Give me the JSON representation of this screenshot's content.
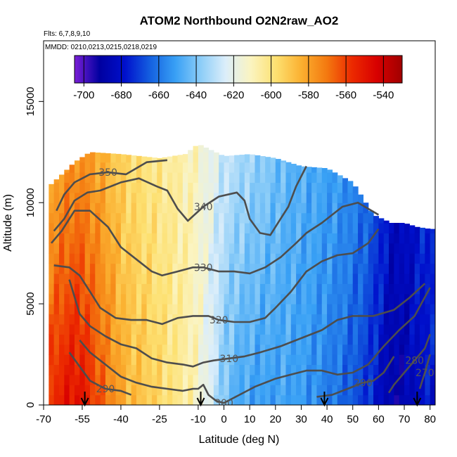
{
  "chart_data": {
    "type": "heatmap",
    "title": "ATOM2 Northbound O2N2raw_AO2",
    "flights_note": "Flts: 6,7,8,9,10",
    "dates_note": "MMDD: 0210,0213,0215,0218,0219",
    "xlabel": "Latitude (deg N)",
    "ylabel": "Altitude (m)",
    "xlim": [
      -70,
      82
    ],
    "ylim": [
      0,
      18000
    ],
    "x_ticks": [
      -70,
      -55,
      -40,
      -25,
      -10,
      0,
      10,
      20,
      30,
      40,
      50,
      60,
      70,
      80
    ],
    "y_ticks": [
      0,
      5000,
      10000,
      15000
    ],
    "colorbar": {
      "ticks": [
        -700,
        -680,
        -660,
        -640,
        -620,
        -600,
        -580,
        -560,
        -540
      ],
      "range": [
        -705,
        -530
      ],
      "colors": [
        "#7a1fd6",
        "#0000a0",
        "#0010cc",
        "#1460e0",
        "#38a0f5",
        "#8ccdf8",
        "#dceefa",
        "#fbf4c0",
        "#fde070",
        "#fbb030",
        "#f47a10",
        "#ec2a00",
        "#d80000",
        "#a00000"
      ]
    },
    "arrows_at_latitude": [
      -54,
      -9,
      39,
      75
    ],
    "heat_profile": {
      "lat": [
        -68,
        -62,
        -56,
        -50,
        -44,
        -38,
        -30,
        -20,
        -12,
        -5,
        0,
        5,
        15,
        25,
        35,
        45,
        55,
        60,
        65,
        70,
        75,
        80
      ],
      "value_low": [
        -558,
        -550,
        -548,
        -560,
        -572,
        -585,
        -590,
        -600,
        -608,
        -625,
        -640,
        -648,
        -652,
        -650,
        -655,
        -662,
        -672,
        -680,
        -690,
        -688,
        -682,
        -678
      ],
      "value_high": [
        -585,
        -578,
        -575,
        -580,
        -588,
        -595,
        -600,
        -605,
        -610,
        -620,
        -628,
        -632,
        -638,
        -645,
        -648,
        -652,
        -660,
        -668,
        -680,
        -682,
        -676,
        -672
      ]
    },
    "top_altitude": [
      [
        -68,
        10800
      ],
      [
        -62,
        11500
      ],
      [
        -58,
        12000
      ],
      [
        -52,
        12500
      ],
      [
        -40,
        12400
      ],
      [
        -25,
        12200
      ],
      [
        -15,
        12400
      ],
      [
        -10,
        12900
      ],
      [
        0,
        12300
      ],
      [
        10,
        12400
      ],
      [
        20,
        12200
      ],
      [
        30,
        11800
      ],
      [
        40,
        11700
      ],
      [
        50,
        11000
      ],
      [
        58,
        9400
      ],
      [
        65,
        9000
      ],
      [
        70,
        9000
      ],
      [
        75,
        8800
      ],
      [
        80,
        8700
      ]
    ],
    "contours": [
      {
        "label": "350",
        "points": [
          [
            -65,
            9600
          ],
          [
            -62,
            10400
          ],
          [
            -58,
            11000
          ],
          [
            -52,
            11400
          ],
          [
            -45,
            11500
          ],
          [
            -38,
            11400
          ],
          [
            -30,
            12000
          ],
          [
            -22,
            12100
          ]
        ]
      },
      {
        "label": "340",
        "points": [
          [
            -66,
            8600
          ],
          [
            -62,
            9200
          ],
          [
            -58,
            10100
          ],
          [
            -53,
            10500
          ],
          [
            -48,
            10600
          ],
          [
            -40,
            11000
          ],
          [
            -33,
            11200
          ],
          [
            -26,
            10800
          ],
          [
            -22,
            10600
          ],
          [
            -18,
            9700
          ],
          [
            -14,
            9100
          ],
          [
            -8,
            9800
          ],
          [
            -2,
            10300
          ],
          [
            5,
            10500
          ],
          [
            8,
            10100
          ],
          [
            10,
            9200
          ],
          [
            14,
            8500
          ],
          [
            18,
            8400
          ],
          [
            22,
            9200
          ],
          [
            25,
            9800
          ],
          [
            28,
            10800
          ],
          [
            32,
            11800
          ]
        ]
      },
      {
        "label": "330",
        "points": [
          [
            -67,
            8000
          ],
          [
            -63,
            8600
          ],
          [
            -58,
            9600
          ],
          [
            -52,
            9600
          ],
          [
            -45,
            8800
          ],
          [
            -40,
            7800
          ],
          [
            -34,
            7200
          ],
          [
            -28,
            6600
          ],
          [
            -24,
            6400
          ],
          [
            -18,
            6600
          ],
          [
            -12,
            6800
          ],
          [
            -8,
            6800
          ],
          [
            -2,
            6600
          ],
          [
            4,
            6600
          ],
          [
            10,
            6500
          ],
          [
            16,
            6800
          ],
          [
            22,
            7300
          ],
          [
            28,
            8000
          ],
          [
            32,
            8500
          ],
          [
            38,
            9000
          ],
          [
            46,
            9800
          ],
          [
            52,
            10000
          ],
          [
            60,
            9400
          ]
        ]
      },
      {
        "label": "320",
        "points": [
          [
            -66,
            6900
          ],
          [
            -60,
            6800
          ],
          [
            -56,
            6400
          ],
          [
            -52,
            5600
          ],
          [
            -48,
            4800
          ],
          [
            -42,
            4300
          ],
          [
            -36,
            4200
          ],
          [
            -30,
            4200
          ],
          [
            -24,
            4000
          ],
          [
            -18,
            4300
          ],
          [
            -12,
            4400
          ],
          [
            -6,
            4400
          ],
          [
            -2,
            4200
          ],
          [
            4,
            4100
          ],
          [
            10,
            4100
          ],
          [
            16,
            4300
          ],
          [
            20,
            4800
          ],
          [
            26,
            5600
          ],
          [
            32,
            6600
          ],
          [
            38,
            7100
          ],
          [
            44,
            7400
          ],
          [
            50,
            7500
          ],
          [
            56,
            8000
          ],
          [
            60,
            8700
          ]
        ]
      },
      {
        "label": "310",
        "points": [
          [
            -60,
            6200
          ],
          [
            -56,
            4500
          ],
          [
            -52,
            3900
          ],
          [
            -46,
            3400
          ],
          [
            -40,
            3000
          ],
          [
            -34,
            2800
          ],
          [
            -28,
            2300
          ],
          [
            -22,
            2100
          ],
          [
            -16,
            2000
          ],
          [
            -12,
            1900
          ],
          [
            -8,
            2100
          ],
          [
            -4,
            2200
          ],
          [
            2,
            2300
          ],
          [
            8,
            2400
          ],
          [
            14,
            2600
          ],
          [
            22,
            2900
          ],
          [
            30,
            3300
          ],
          [
            38,
            3700
          ],
          [
            44,
            4200
          ],
          [
            50,
            4400
          ],
          [
            58,
            4400
          ],
          [
            66,
            4700
          ],
          [
            72,
            5300
          ],
          [
            78,
            6000
          ]
        ]
      },
      {
        "label": "300",
        "points": [
          [
            -56,
            3200
          ],
          [
            -52,
            2600
          ],
          [
            -46,
            2000
          ],
          [
            -40,
            1400
          ],
          [
            -34,
            1100
          ],
          [
            -28,
            900
          ],
          [
            -22,
            800
          ],
          [
            -16,
            700
          ],
          [
            -12,
            800
          ],
          [
            -10,
            800
          ],
          [
            -8,
            1000
          ],
          [
            -6,
            500
          ],
          [
            -3,
            200
          ],
          [
            0,
            100
          ],
          [
            6,
            500
          ],
          [
            12,
            900
          ],
          [
            20,
            1300
          ],
          [
            26,
            1500
          ],
          [
            32,
            1700
          ],
          [
            38,
            1700
          ],
          [
            44,
            1500
          ],
          [
            50,
            1600
          ],
          [
            56,
            2000
          ],
          [
            62,
            2900
          ],
          [
            68,
            3700
          ],
          [
            74,
            4400
          ],
          [
            80,
            5800
          ]
        ]
      },
      {
        "label": "290",
        "points": [
          [
            -60,
            2600
          ],
          [
            -56,
            1900
          ],
          [
            -52,
            1200
          ],
          [
            -46,
            800
          ],
          [
            -40,
            700
          ],
          [
            -36,
            500
          ]
        ]
      },
      {
        "label": "290",
        "points": [
          [
            36,
            400
          ],
          [
            42,
            500
          ],
          [
            48,
            800
          ],
          [
            54,
            1100
          ],
          [
            58,
            1200
          ],
          [
            62,
            1600
          ],
          [
            66,
            2400
          ]
        ]
      },
      {
        "label": "280",
        "points": [
          [
            64,
            600
          ],
          [
            66,
            1000
          ],
          [
            70,
            1600
          ],
          [
            74,
            2200
          ],
          [
            78,
            2800
          ],
          [
            80,
            3500
          ]
        ]
      },
      {
        "label": "270",
        "points": [
          [
            76,
            800
          ],
          [
            78,
            1600
          ],
          [
            80,
            2500
          ]
        ]
      }
    ]
  }
}
